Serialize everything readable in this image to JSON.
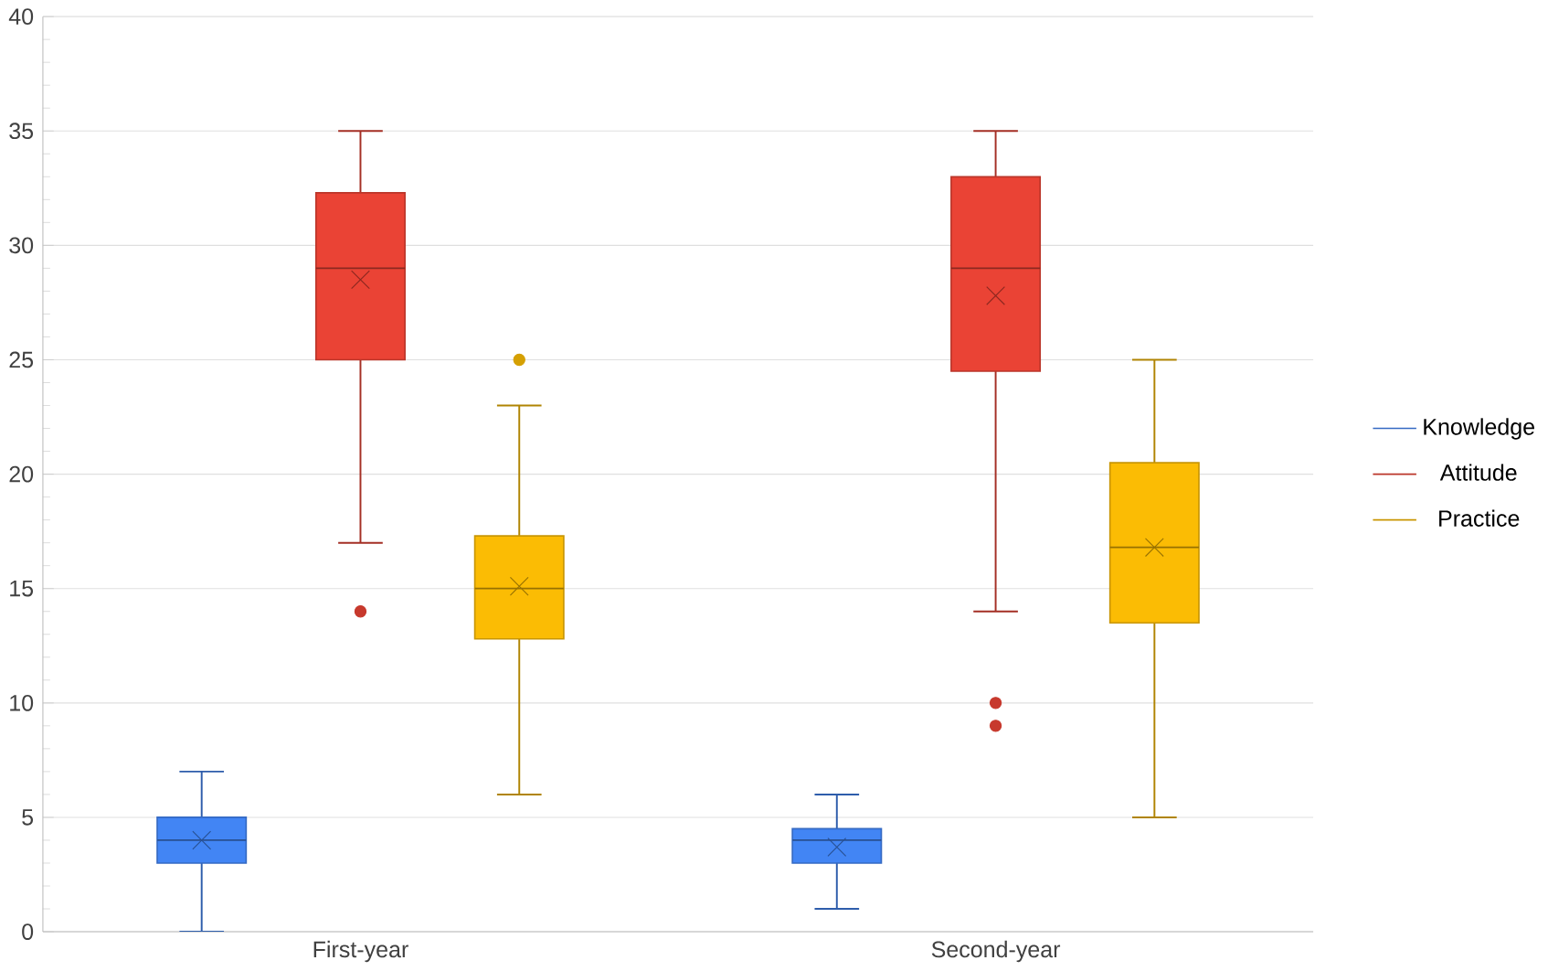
{
  "chart_data": {
    "type": "box",
    "categories": [
      "First-year",
      "Second-year"
    ],
    "series": [
      {
        "name": "Knowledge",
        "color": "#4285f4",
        "boxes": [
          {
            "low": 0,
            "q1": 3,
            "median": 4,
            "q3": 5,
            "high": 7,
            "mean": 4
          },
          {
            "low": 1,
            "q1": 3,
            "median": 4,
            "q3": 4.5,
            "high": 6,
            "mean": 3.7
          }
        ]
      },
      {
        "name": "Attitude",
        "color": "#ea4335",
        "boxes": [
          {
            "low": 17,
            "q1": 25,
            "median": 29,
            "q3": 32.3,
            "high": 35,
            "mean": 28.5,
            "outliers": [
              14
            ]
          },
          {
            "low": 14,
            "q1": 24.5,
            "median": 29,
            "q3": 33,
            "high": 35,
            "mean": 27.8,
            "outliers": [
              10,
              9
            ]
          }
        ]
      },
      {
        "name": "Practice",
        "color": "#fbbc04",
        "boxes": [
          {
            "low": 6,
            "q1": 12.8,
            "median": 15,
            "q3": 17.3,
            "high": 23,
            "mean": 15.1,
            "outliers": [
              25
            ]
          },
          {
            "low": 5,
            "q1": 13.5,
            "median": 16.8,
            "q3": 20.5,
            "high": 25,
            "mean": 16.8
          }
        ]
      }
    ],
    "ylim": [
      0,
      40
    ],
    "yticks": [
      0,
      5,
      10,
      15,
      20,
      25,
      30,
      35,
      40
    ],
    "grid": "y",
    "legend": "right"
  }
}
